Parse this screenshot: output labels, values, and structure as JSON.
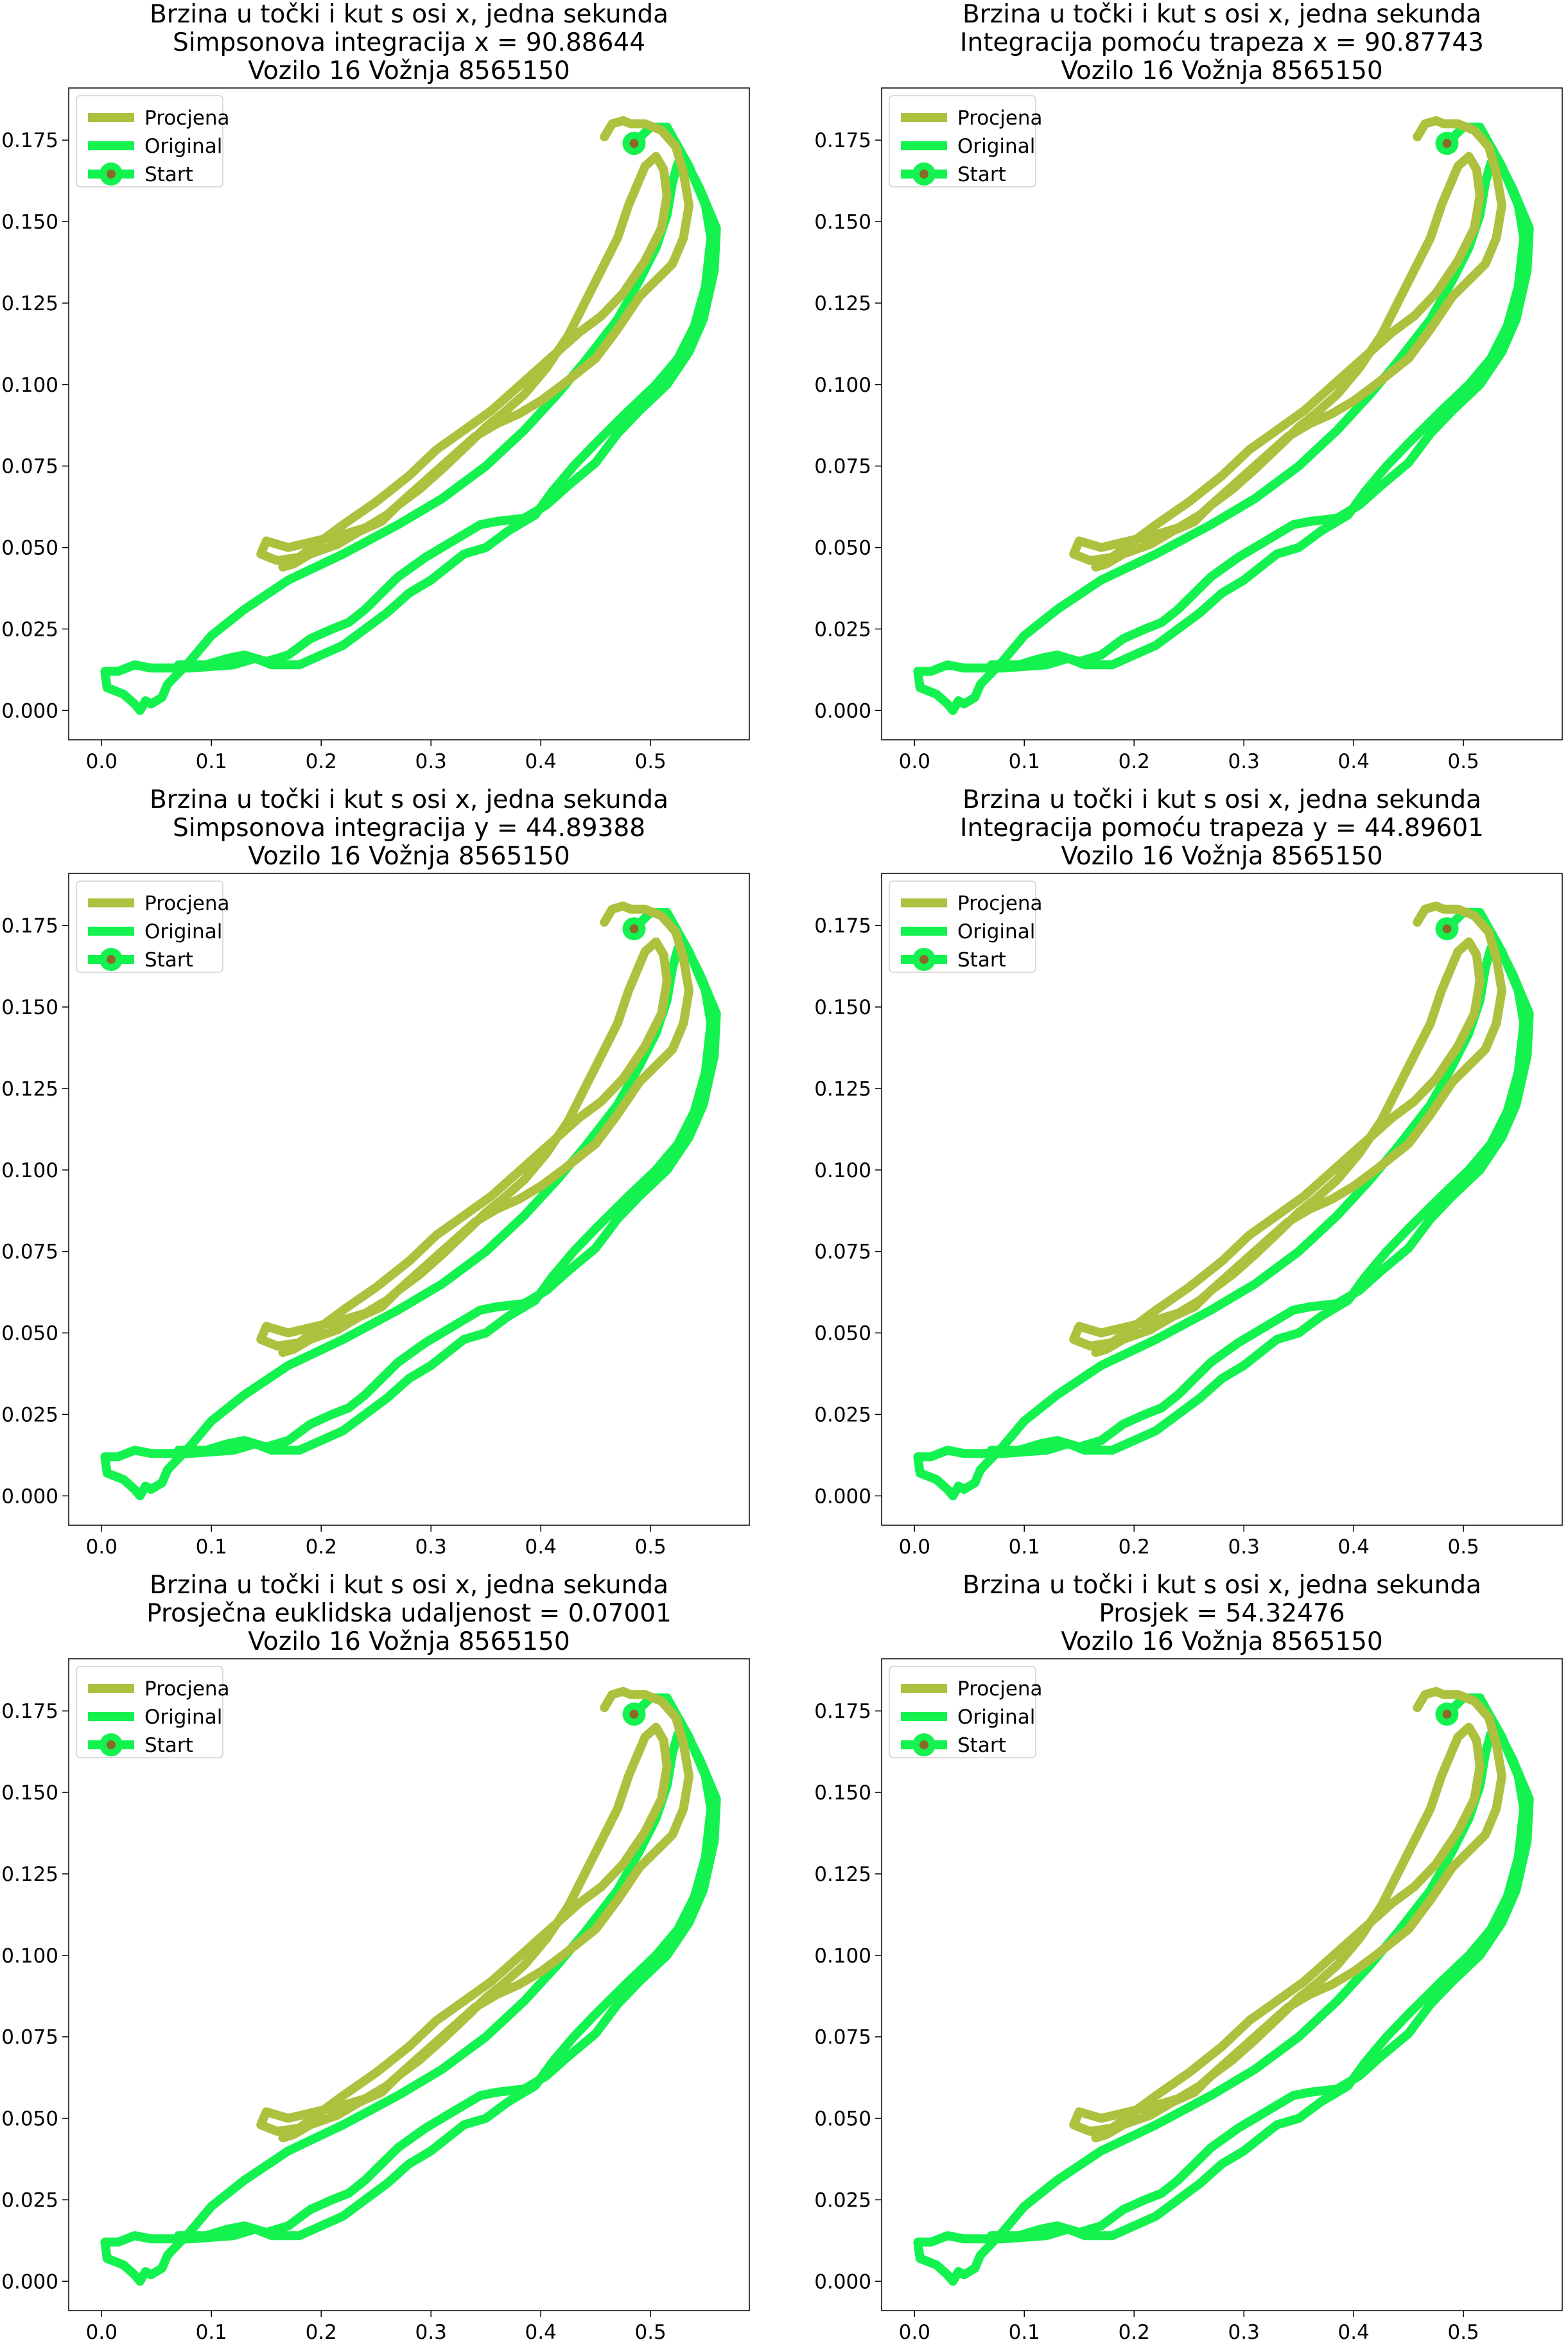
{
  "colors": {
    "procjena": "#adc13f",
    "original": "#14f24f",
    "start_dot": "#8a6a28"
  },
  "legend": [
    "Procjena",
    "Original",
    "Start"
  ],
  "chart_data": [
    {
      "type": "line",
      "title": [
        "Brzina u točki i kut s osi x, jedna sekunda",
        "Simpsonova integracija x = 90.88644",
        "Vozilo 16 Vožnja 8565150"
      ],
      "xticks": [
        "0.0",
        "0.1",
        "0.2",
        "0.3",
        "0.4",
        "0.5"
      ],
      "yticks": [
        "0.000",
        "0.025",
        "0.050",
        "0.075",
        "0.100",
        "0.125",
        "0.150",
        "0.175"
      ],
      "xlim": [
        -0.03,
        0.59
      ],
      "ylim": [
        -0.009,
        0.191
      ],
      "legend": "top-left",
      "grid": false
    },
    {
      "type": "line",
      "title": [
        "Brzina u točki i kut s osi x, jedna sekunda",
        "Integracija pomoću trapeza x = 90.87743",
        "Vozilo 16 Vožnja 8565150"
      ],
      "xticks": [
        "0.0",
        "0.1",
        "0.2",
        "0.3",
        "0.4",
        "0.5"
      ],
      "yticks": [
        "0.000",
        "0.025",
        "0.050",
        "0.075",
        "0.100",
        "0.125",
        "0.150",
        "0.175"
      ],
      "xlim": [
        -0.03,
        0.59
      ],
      "ylim": [
        -0.009,
        0.191
      ],
      "legend": "top-left",
      "grid": false
    },
    {
      "type": "line",
      "title": [
        "Brzina u točki i kut s osi x, jedna sekunda",
        "Simpsonova integracija y = 44.89388",
        "Vozilo 16 Vožnja 8565150"
      ],
      "xticks": [
        "0.0",
        "0.1",
        "0.2",
        "0.3",
        "0.4",
        "0.5"
      ],
      "yticks": [
        "0.000",
        "0.025",
        "0.050",
        "0.075",
        "0.100",
        "0.125",
        "0.150",
        "0.175"
      ],
      "xlim": [
        -0.03,
        0.59
      ],
      "ylim": [
        -0.009,
        0.191
      ],
      "legend": "top-left",
      "grid": false
    },
    {
      "type": "line",
      "title": [
        "Brzina u točki i kut s osi x, jedna sekunda",
        "Integracija pomoću trapeza y = 44.89601",
        "Vozilo 16 Vožnja 8565150"
      ],
      "xticks": [
        "0.0",
        "0.1",
        "0.2",
        "0.3",
        "0.4",
        "0.5"
      ],
      "yticks": [
        "0.000",
        "0.025",
        "0.050",
        "0.075",
        "0.100",
        "0.125",
        "0.150",
        "0.175"
      ],
      "xlim": [
        -0.03,
        0.59
      ],
      "ylim": [
        -0.009,
        0.191
      ],
      "legend": "top-left",
      "grid": false
    },
    {
      "type": "line",
      "title": [
        "Brzina u točki i kut s osi x, jedna sekunda",
        "Prosječna euklidska udaljenost = 0.07001",
        "Vozilo 16 Vožnja 8565150"
      ],
      "xticks": [
        "0.0",
        "0.1",
        "0.2",
        "0.3",
        "0.4",
        "0.5"
      ],
      "yticks": [
        "0.000",
        "0.025",
        "0.050",
        "0.075",
        "0.100",
        "0.125",
        "0.150",
        "0.175"
      ],
      "xlim": [
        -0.03,
        0.59
      ],
      "ylim": [
        -0.009,
        0.191
      ],
      "legend": "top-left",
      "grid": false
    },
    {
      "type": "line",
      "title": [
        "Brzina u točki i kut s osi x, jedna sekunda",
        "Prosjek = 54.32476",
        "Vozilo 16 Vožnja 8565150"
      ],
      "xticks": [
        "0.0",
        "0.1",
        "0.2",
        "0.3",
        "0.4",
        "0.5"
      ],
      "yticks": [
        "0.000",
        "0.025",
        "0.050",
        "0.075",
        "0.100",
        "0.125",
        "0.150",
        "0.175"
      ],
      "xlim": [
        -0.03,
        0.59
      ],
      "ylim": [
        -0.009,
        0.191
      ],
      "legend": "top-left",
      "grid": false
    }
  ],
  "series_data": {
    "start": [
      0.485,
      0.174
    ],
    "original": [
      [
        0.485,
        0.174
      ],
      [
        0.5,
        0.179
      ],
      [
        0.515,
        0.179
      ],
      [
        0.535,
        0.167
      ],
      [
        0.55,
        0.155
      ],
      [
        0.555,
        0.145
      ],
      [
        0.55,
        0.13
      ],
      [
        0.54,
        0.118
      ],
      [
        0.525,
        0.108
      ],
      [
        0.505,
        0.1
      ],
      [
        0.48,
        0.092
      ],
      [
        0.45,
        0.082
      ],
      [
        0.43,
        0.075
      ],
      [
        0.41,
        0.067
      ],
      [
        0.395,
        0.06
      ],
      [
        0.37,
        0.055
      ],
      [
        0.35,
        0.05
      ],
      [
        0.33,
        0.048
      ],
      [
        0.3,
        0.04
      ],
      [
        0.28,
        0.036
      ],
      [
        0.26,
        0.03
      ],
      [
        0.24,
        0.025
      ],
      [
        0.22,
        0.02
      ],
      [
        0.2,
        0.017
      ],
      [
        0.18,
        0.014
      ],
      [
        0.155,
        0.014
      ],
      [
        0.14,
        0.016
      ],
      [
        0.12,
        0.014
      ],
      [
        0.08,
        0.013
      ],
      [
        0.045,
        0.013
      ],
      [
        0.03,
        0.014
      ],
      [
        0.015,
        0.012
      ],
      [
        0.003,
        0.012
      ],
      [
        0.005,
        0.007
      ],
      [
        0.02,
        0.005
      ],
      [
        0.03,
        0.002
      ],
      [
        0.035,
        0.0
      ],
      [
        0.04,
        0.003
      ],
      [
        0.045,
        0.002
      ],
      [
        0.055,
        0.004
      ],
      [
        0.06,
        0.008
      ],
      [
        0.08,
        0.015
      ],
      [
        0.1,
        0.023
      ],
      [
        0.13,
        0.031
      ],
      [
        0.17,
        0.04
      ],
      [
        0.22,
        0.048
      ],
      [
        0.27,
        0.057
      ],
      [
        0.31,
        0.065
      ],
      [
        0.35,
        0.075
      ],
      [
        0.385,
        0.086
      ],
      [
        0.415,
        0.097
      ],
      [
        0.44,
        0.107
      ],
      [
        0.47,
        0.12
      ],
      [
        0.49,
        0.132
      ],
      [
        0.505,
        0.142
      ],
      [
        0.515,
        0.152
      ],
      [
        0.52,
        0.162
      ],
      [
        0.525,
        0.168
      ],
      [
        0.53,
        0.17
      ],
      [
        0.545,
        0.16
      ],
      [
        0.56,
        0.148
      ],
      [
        0.558,
        0.135
      ],
      [
        0.548,
        0.12
      ],
      [
        0.535,
        0.11
      ],
      [
        0.515,
        0.1
      ],
      [
        0.49,
        0.092
      ],
      [
        0.47,
        0.085
      ],
      [
        0.45,
        0.076
      ],
      [
        0.425,
        0.069
      ],
      [
        0.405,
        0.063
      ],
      [
        0.385,
        0.059
      ],
      [
        0.36,
        0.058
      ],
      [
        0.345,
        0.057
      ],
      [
        0.32,
        0.052
      ],
      [
        0.295,
        0.047
      ],
      [
        0.27,
        0.041
      ],
      [
        0.255,
        0.036
      ],
      [
        0.24,
        0.031
      ],
      [
        0.225,
        0.027
      ],
      [
        0.21,
        0.025
      ],
      [
        0.19,
        0.022
      ],
      [
        0.17,
        0.017
      ],
      [
        0.15,
        0.015
      ],
      [
        0.13,
        0.017
      ],
      [
        0.115,
        0.016
      ],
      [
        0.095,
        0.014
      ],
      [
        0.07,
        0.014
      ]
    ],
    "procjena": [
      [
        0.458,
        0.176
      ],
      [
        0.465,
        0.18
      ],
      [
        0.475,
        0.181
      ],
      [
        0.482,
        0.18
      ],
      [
        0.495,
        0.18
      ],
      [
        0.51,
        0.178
      ],
      [
        0.523,
        0.173
      ],
      [
        0.53,
        0.165
      ],
      [
        0.535,
        0.155
      ],
      [
        0.53,
        0.145
      ],
      [
        0.52,
        0.137
      ],
      [
        0.505,
        0.132
      ],
      [
        0.49,
        0.127
      ],
      [
        0.47,
        0.117
      ],
      [
        0.45,
        0.108
      ],
      [
        0.42,
        0.1
      ],
      [
        0.4,
        0.095
      ],
      [
        0.38,
        0.091
      ],
      [
        0.36,
        0.088
      ],
      [
        0.34,
        0.084
      ],
      [
        0.32,
        0.078
      ],
      [
        0.3,
        0.072
      ],
      [
        0.28,
        0.066
      ],
      [
        0.26,
        0.06
      ],
      [
        0.24,
        0.056
      ],
      [
        0.22,
        0.054
      ],
      [
        0.195,
        0.052
      ],
      [
        0.17,
        0.05
      ],
      [
        0.15,
        0.052
      ],
      [
        0.145,
        0.048
      ],
      [
        0.16,
        0.046
      ],
      [
        0.18,
        0.047
      ],
      [
        0.2,
        0.052
      ],
      [
        0.22,
        0.057
      ],
      [
        0.25,
        0.064
      ],
      [
        0.28,
        0.072
      ],
      [
        0.305,
        0.08
      ],
      [
        0.33,
        0.086
      ],
      [
        0.355,
        0.092
      ],
      [
        0.375,
        0.098
      ],
      [
        0.395,
        0.104
      ],
      [
        0.415,
        0.11
      ],
      [
        0.435,
        0.116
      ],
      [
        0.455,
        0.121
      ],
      [
        0.475,
        0.128
      ],
      [
        0.495,
        0.138
      ],
      [
        0.51,
        0.148
      ],
      [
        0.515,
        0.158
      ],
      [
        0.512,
        0.166
      ],
      [
        0.505,
        0.17
      ],
      [
        0.495,
        0.167
      ],
      [
        0.48,
        0.155
      ],
      [
        0.47,
        0.145
      ],
      [
        0.455,
        0.135
      ],
      [
        0.44,
        0.125
      ],
      [
        0.425,
        0.115
      ],
      [
        0.405,
        0.105
      ],
      [
        0.385,
        0.097
      ],
      [
        0.365,
        0.091
      ],
      [
        0.35,
        0.087
      ],
      [
        0.335,
        0.082
      ],
      [
        0.31,
        0.074
      ],
      [
        0.29,
        0.068
      ],
      [
        0.27,
        0.063
      ],
      [
        0.255,
        0.058
      ],
      [
        0.235,
        0.055
      ],
      [
        0.215,
        0.051
      ],
      [
        0.19,
        0.048
      ],
      [
        0.175,
        0.045
      ],
      [
        0.165,
        0.044
      ]
    ]
  }
}
